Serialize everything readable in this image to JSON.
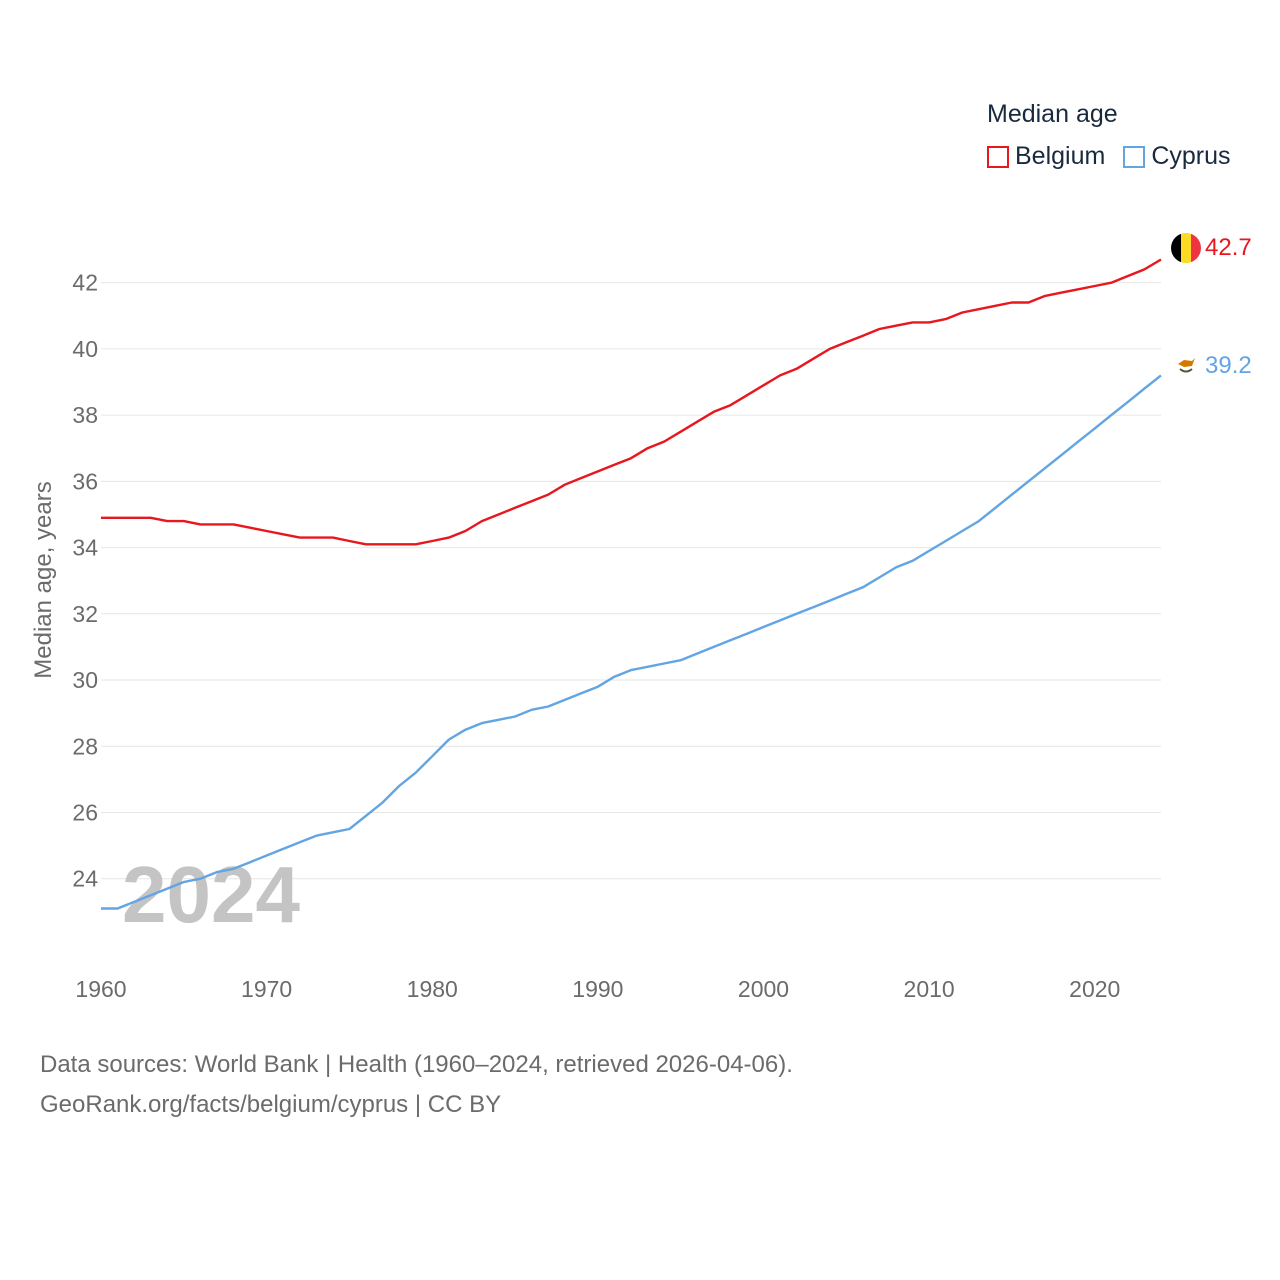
{
  "legend": {
    "title": "Median age",
    "items": [
      {
        "name": "Belgium",
        "color": "#e8161d"
      },
      {
        "name": "Cyprus",
        "color": "#63a4e2"
      }
    ]
  },
  "watermark_year": "2024",
  "end_labels": {
    "belgium": "42.7",
    "cyprus": "39.2"
  },
  "sources": {
    "line1": "Data sources: World Bank | Health (1960–2024, retrieved 2026-04-06).",
    "line2": "GeoRank.org/facts/belgium/cyprus | CC BY"
  },
  "chart_data": {
    "type": "line",
    "title": "Median age",
    "xlabel": "",
    "ylabel": "Median age, years",
    "xlim": [
      1960,
      2024
    ],
    "ylim": [
      22.3,
      43.5
    ],
    "xticks": [
      1960,
      1970,
      1980,
      1990,
      2000,
      2010,
      2020
    ],
    "yticks": [
      24,
      26,
      28,
      30,
      32,
      34,
      36,
      38,
      40,
      42
    ],
    "grid": true,
    "legend_position": "top-right",
    "x": [
      1960,
      1961,
      1962,
      1963,
      1964,
      1965,
      1966,
      1967,
      1968,
      1969,
      1970,
      1971,
      1972,
      1973,
      1974,
      1975,
      1976,
      1977,
      1978,
      1979,
      1980,
      1981,
      1982,
      1983,
      1984,
      1985,
      1986,
      1987,
      1988,
      1989,
      1990,
      1991,
      1992,
      1993,
      1994,
      1995,
      1996,
      1997,
      1998,
      1999,
      2000,
      2001,
      2002,
      2003,
      2004,
      2005,
      2006,
      2007,
      2008,
      2009,
      2010,
      2011,
      2012,
      2013,
      2014,
      2015,
      2016,
      2017,
      2018,
      2019,
      2020,
      2021,
      2022,
      2023,
      2024
    ],
    "series": [
      {
        "name": "Belgium",
        "color": "#e8161d",
        "values": [
          34.9,
          34.9,
          34.9,
          34.9,
          34.8,
          34.8,
          34.7,
          34.7,
          34.7,
          34.6,
          34.5,
          34.4,
          34.3,
          34.3,
          34.3,
          34.2,
          34.1,
          34.1,
          34.1,
          34.1,
          34.2,
          34.3,
          34.5,
          34.8,
          35.0,
          35.2,
          35.4,
          35.6,
          35.9,
          36.1,
          36.3,
          36.5,
          36.7,
          37.0,
          37.2,
          37.5,
          37.8,
          38.1,
          38.3,
          38.6,
          38.9,
          39.2,
          39.4,
          39.7,
          40.0,
          40.2,
          40.4,
          40.6,
          40.7,
          40.8,
          40.8,
          40.9,
          41.1,
          41.2,
          41.3,
          41.4,
          41.4,
          41.6,
          41.7,
          41.8,
          41.9,
          42.0,
          42.2,
          42.4,
          42.7
        ]
      },
      {
        "name": "Cyprus",
        "color": "#63a4e2",
        "values": [
          23.1,
          23.1,
          23.3,
          23.5,
          23.7,
          23.9,
          24.0,
          24.2,
          24.3,
          24.5,
          24.7,
          24.9,
          25.1,
          25.3,
          25.4,
          25.5,
          25.9,
          26.3,
          26.8,
          27.2,
          27.7,
          28.2,
          28.5,
          28.7,
          28.8,
          28.9,
          29.1,
          29.2,
          29.4,
          29.6,
          29.8,
          30.1,
          30.3,
          30.4,
          30.5,
          30.6,
          30.8,
          31.0,
          31.2,
          31.4,
          31.6,
          31.8,
          32.0,
          32.2,
          32.4,
          32.6,
          32.8,
          33.1,
          33.4,
          33.6,
          33.9,
          34.2,
          34.5,
          34.8,
          35.2,
          35.6,
          36.0,
          36.4,
          36.8,
          37.2,
          37.6,
          38.0,
          38.4,
          38.8,
          39.2
        ]
      }
    ]
  }
}
